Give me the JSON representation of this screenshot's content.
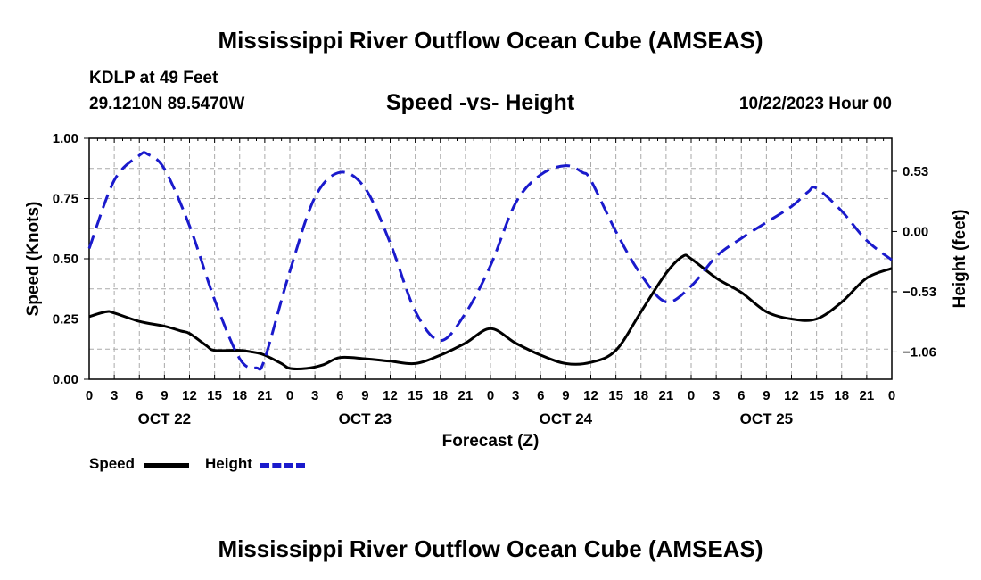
{
  "header": {
    "title": "Mississippi River Outflow Ocean Cube (AMSEAS)",
    "station": "KDLP at 49 Feet",
    "coords": "29.1210N  89.5470W",
    "subtitle": "Speed -vs- Height",
    "datetime": "10/22/2023 Hour 00"
  },
  "legend": {
    "speed_label": "Speed",
    "height_label": "Height"
  },
  "footer": {
    "title": "Mississippi River Outflow Ocean Cube (AMSEAS)"
  },
  "colors": {
    "speed": "#000000",
    "height": "#1a1acc",
    "grid": "#aaaaaa"
  },
  "chart_data": {
    "type": "line",
    "title": "Speed -vs- Height",
    "xlabel": "Forecast (Z)",
    "ylabel": "Speed (Knots)",
    "y2label": "Height (feet)",
    "xlim": [
      0,
      96
    ],
    "ylim": [
      0,
      1.0
    ],
    "y2lim": [
      -1.3,
      0.82
    ],
    "x_tick_step_hours": 3,
    "x_tick_labels": [
      "0",
      "3",
      "6",
      "9",
      "12",
      "15",
      "18",
      "21",
      "0",
      "3",
      "6",
      "9",
      "12",
      "15",
      "18",
      "21",
      "0",
      "3",
      "6",
      "9",
      "12",
      "15",
      "18",
      "21",
      "0",
      "3",
      "6",
      "9",
      "12",
      "15",
      "18",
      "21",
      "0"
    ],
    "day_labels": [
      {
        "label": "OCT 22",
        "hour": 9
      },
      {
        "label": "OCT 23",
        "hour": 33
      },
      {
        "label": "OCT 24",
        "hour": 57
      },
      {
        "label": "OCT 25",
        "hour": 81
      }
    ],
    "y_ticks": [
      0.0,
      0.25,
      0.5,
      0.75,
      1.0
    ],
    "y_tick_labels": [
      "0.00",
      "0.25",
      "0.50",
      "0.75",
      "1.00"
    ],
    "y2_ticks": [
      0.53,
      0.0,
      -0.53,
      -1.06
    ],
    "y2_tick_labels": [
      "0.53",
      "0.00",
      "−0.53",
      "−1.06"
    ],
    "grid": true,
    "series": [
      {
        "name": "Speed",
        "axis": "left",
        "style": "solid",
        "x": [
          0,
          2,
          3,
          6,
          9,
          11,
          12,
          14,
          15,
          18,
          20,
          21,
          23,
          24,
          26,
          28,
          30,
          33,
          36,
          39,
          42,
          45,
          48,
          51,
          54,
          57,
          60,
          63,
          66,
          69,
          71,
          72,
          75,
          78,
          81,
          84,
          87,
          90,
          93,
          96
        ],
        "y": [
          0.26,
          0.28,
          0.275,
          0.24,
          0.22,
          0.2,
          0.19,
          0.14,
          0.12,
          0.12,
          0.11,
          0.1,
          0.065,
          0.045,
          0.045,
          0.06,
          0.09,
          0.085,
          0.075,
          0.065,
          0.1,
          0.15,
          0.21,
          0.15,
          0.1,
          0.065,
          0.07,
          0.12,
          0.28,
          0.44,
          0.51,
          0.5,
          0.42,
          0.36,
          0.28,
          0.25,
          0.25,
          0.32,
          0.42,
          0.46
        ]
      },
      {
        "name": "Height",
        "axis": "right",
        "style": "dashed",
        "x": [
          0,
          3,
          6,
          7,
          9,
          12,
          15,
          18,
          20,
          21,
          24,
          27,
          30,
          33,
          36,
          39,
          42,
          45,
          48,
          51,
          54,
          57,
          59,
          60,
          63,
          66,
          69,
          72,
          75,
          78,
          81,
          84,
          86,
          87,
          90,
          93,
          96
        ],
        "y": [
          -0.15,
          0.45,
          0.67,
          0.68,
          0.55,
          0.05,
          -0.6,
          -1.12,
          -1.2,
          -1.12,
          -0.35,
          0.3,
          0.52,
          0.38,
          -0.1,
          -0.7,
          -0.96,
          -0.72,
          -0.3,
          0.25,
          0.5,
          0.58,
          0.52,
          0.45,
          0.0,
          -0.38,
          -0.62,
          -0.48,
          -0.22,
          -0.06,
          0.08,
          0.22,
          0.35,
          0.38,
          0.18,
          -0.08,
          -0.25
        ]
      }
    ]
  }
}
